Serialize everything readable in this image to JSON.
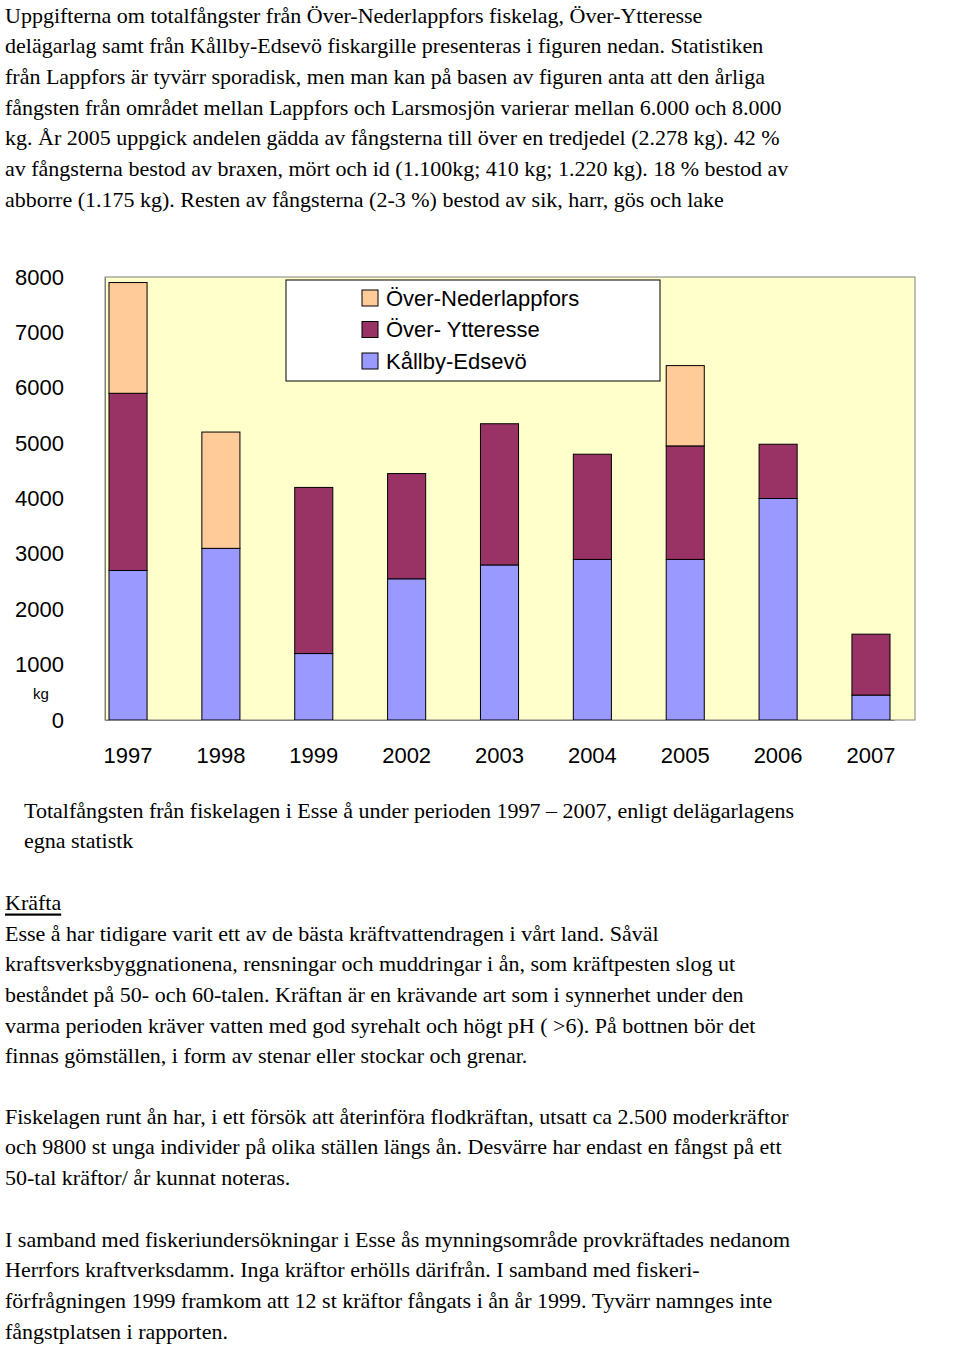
{
  "intro": [
    "Uppgifterna om totalfångster från Över-Nederlappfors fiskelag, Över-Ytteresse",
    "delägarlag samt från Kållby-Edsevö fiskargille presenteras i figuren nedan.  Statistiken",
    "från Lappfors är tyvärr sporadisk, men man kan på basen av figuren anta att den årliga",
    "fångsten från området mellan Lappfors och Larsmosjön varierar mellan 6.000 och 8.000",
    "kg. År 2005 uppgick andelen gädda av fångsterna till över en tredjedel (2.278 kg).  42 %",
    "av fångsterna bestod av braxen, mört och id (1.100kg; 410 kg; 1.220 kg). 18 % bestod av",
    "abborre (1.175 kg). Resten av fångsterna (2-3 %) bestod av sik, harr, gös och lake"
  ],
  "chart_data": {
    "type": "bar",
    "stacked": true,
    "grid": false,
    "legend": "upper center",
    "y_label": "kg",
    "categories": [
      "1997",
      "1998",
      "1999",
      "2002",
      "2003",
      "2004",
      "2005",
      "2006",
      "2007"
    ],
    "series": [
      {
        "name": "Över-Nederlappfors",
        "color": "#ffcc99",
        "values": [
          2000,
          2100,
          null,
          null,
          null,
          null,
          1450,
          null,
          null
        ]
      },
      {
        "name": "Över- Ytteresse",
        "color": "#993366",
        "values": [
          3200,
          null,
          3000,
          1900,
          2550,
          1900,
          2050,
          980,
          1100
        ]
      },
      {
        "name": "Kållby-Edsevö",
        "color": "#9999ff",
        "values": [
          2700,
          3100,
          1200,
          2550,
          2800,
          2900,
          2900,
          4000,
          450
        ]
      }
    ],
    "ylim": [
      0,
      8000
    ],
    "yticks": [
      0,
      1000,
      2000,
      3000,
      4000,
      5000,
      6000,
      7000,
      8000
    ]
  },
  "caption": [
    "Totalfångsten från fiskelagen i Esse å under perioden 1997 – 2007, enligt delägarlagens",
    "egna statistk"
  ],
  "section_heading": "Kräfta",
  "paragraphs": [
    [
      "Esse å har tidigare varit ett av de bästa kräftvattendragen i vårt land. Såväl",
      "kraftsverksbyggnationena, rensningar och muddringar i ån, som kräftpesten slog ut",
      "beståndet på 50- och 60-talen. Kräftan är en krävande art som i synnerhet under den",
      "varma perioden kräver vatten med god syrehalt och högt pH ( >6). På bottnen bör det",
      "finnas gömställen, i form av stenar eller stockar och grenar."
    ],
    [
      "Fiskelagen runt ån har, i ett försök att återinföra flodkräftan, utsatt ca 2.500 moderkräftor",
      "och 9800 st unga individer på olika ställen längs ån.  Desvärre har endast en fångst på ett",
      "50-tal kräftor/ år kunnat noteras."
    ],
    [
      "I samband med fiskeriundersökningar i Esse ås mynningsområde provkräftades nedanom",
      "Herrfors kraftverksdamm.  Inga kräftor erhölls därifrån.  I samband med fiskeri-",
      "förfrågningen 1999 framkom att 12 st kräftor fångats i ån år 1999.  Tyvärr namnges inte",
      "fångstplatsen i rapporten."
    ]
  ]
}
